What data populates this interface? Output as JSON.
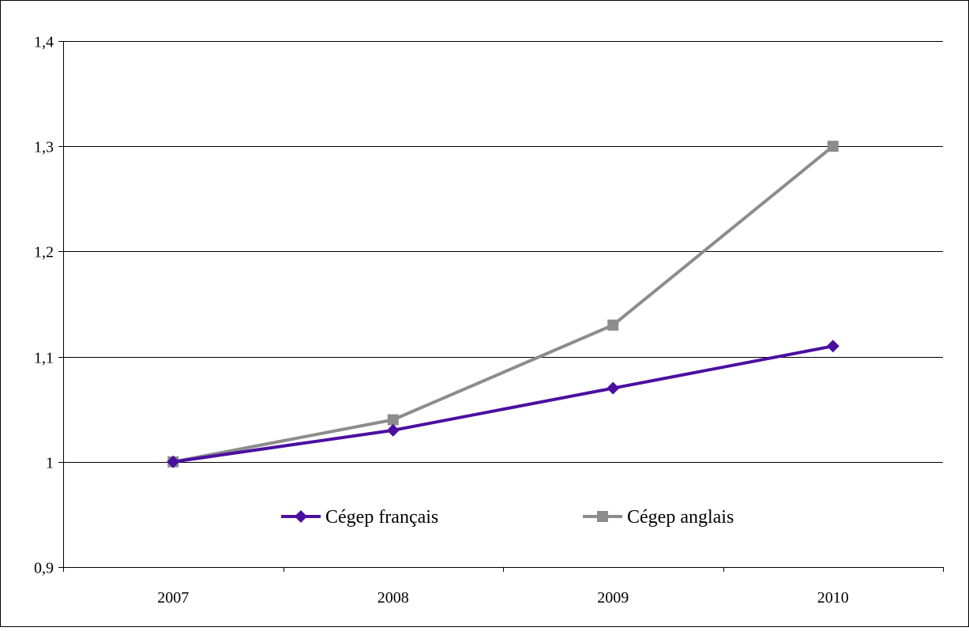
{
  "chart_data": {
    "type": "line",
    "categories": [
      "2007",
      "2008",
      "2009",
      "2010"
    ],
    "series": [
      {
        "name": "Cégep français",
        "values": [
          1.0,
          1.03,
          1.07,
          1.11
        ],
        "color": "#4b0fa0",
        "marker": "diamond"
      },
      {
        "name": "Cégep anglais",
        "values": [
          1.0,
          1.04,
          1.13,
          1.3
        ],
        "color": "#8c8c8c",
        "marker": "square"
      }
    ],
    "yticks": [
      "0,9",
      "1",
      "1,1",
      "1,2",
      "1,3",
      "1,4"
    ],
    "ylim": [
      0.9,
      1.4
    ],
    "grid": true,
    "legend_position": "inside-bottom"
  }
}
